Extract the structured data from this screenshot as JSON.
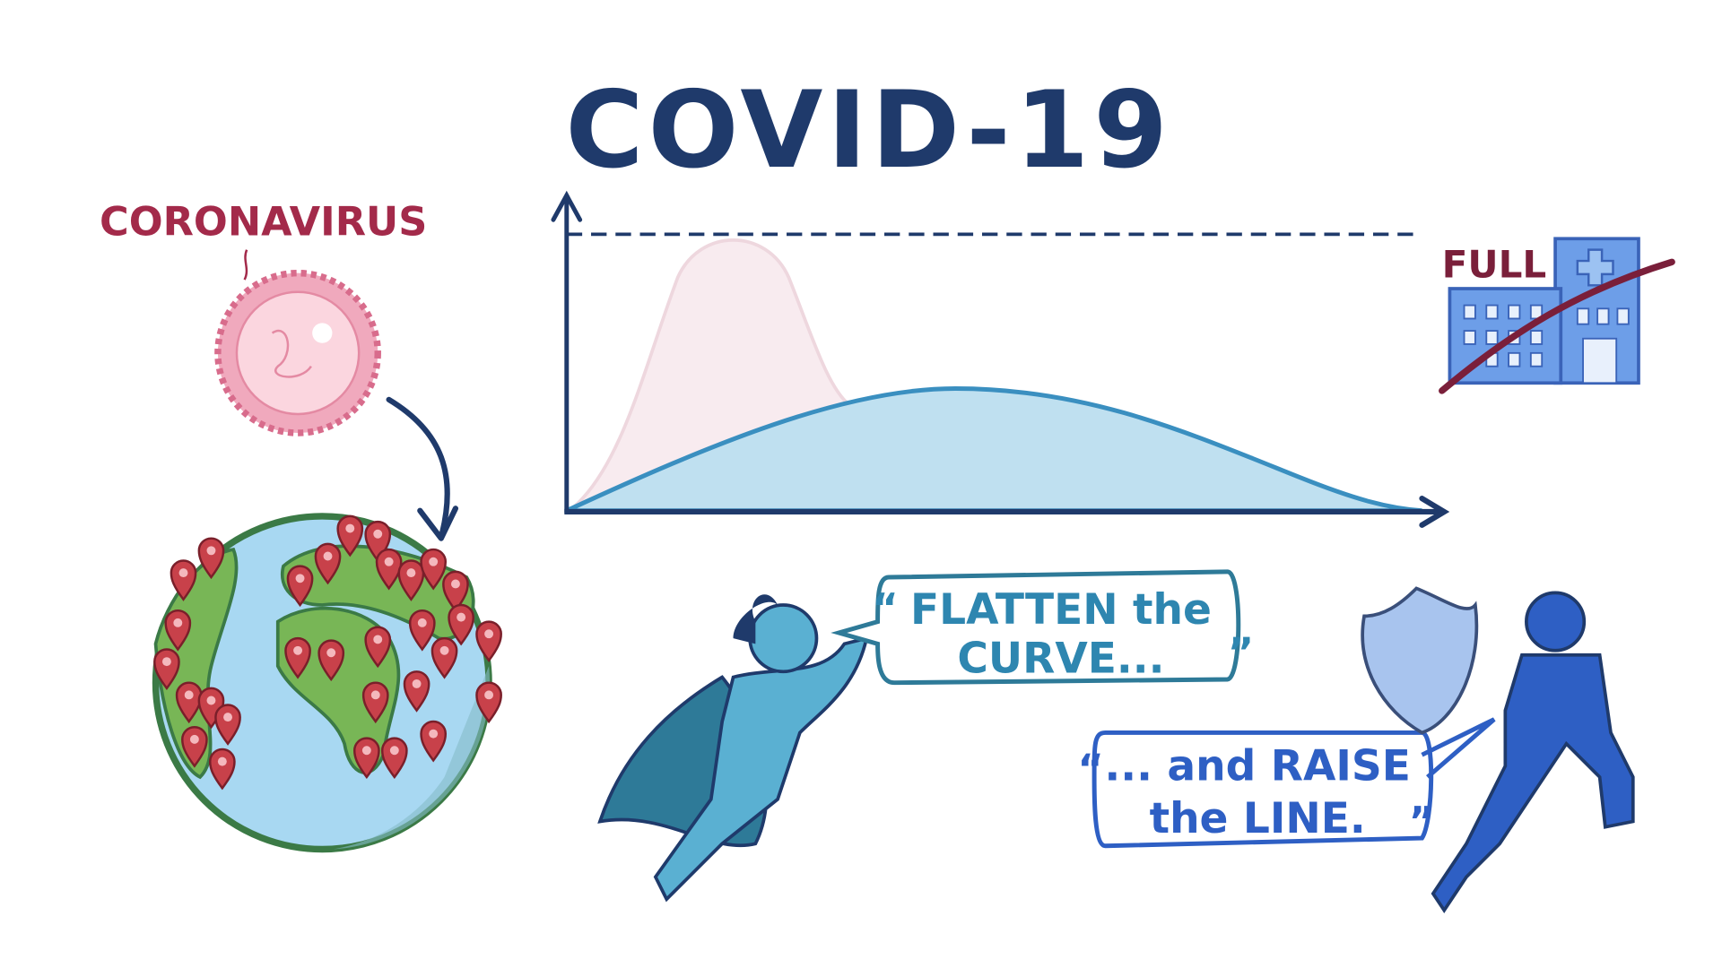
{
  "title": "COVID-19",
  "labels": {
    "virus": "CORONAVIRUS",
    "hospital": "FULL"
  },
  "bubbles": [
    {
      "open_quote": "“",
      "lines": [
        "FLATTEN the",
        "CURVE..."
      ],
      "close_quote": "”"
    },
    {
      "open_quote": "“",
      "lines": [
        "... and RAISE",
        "the LINE."
      ],
      "close_quote": "”"
    }
  ]
}
